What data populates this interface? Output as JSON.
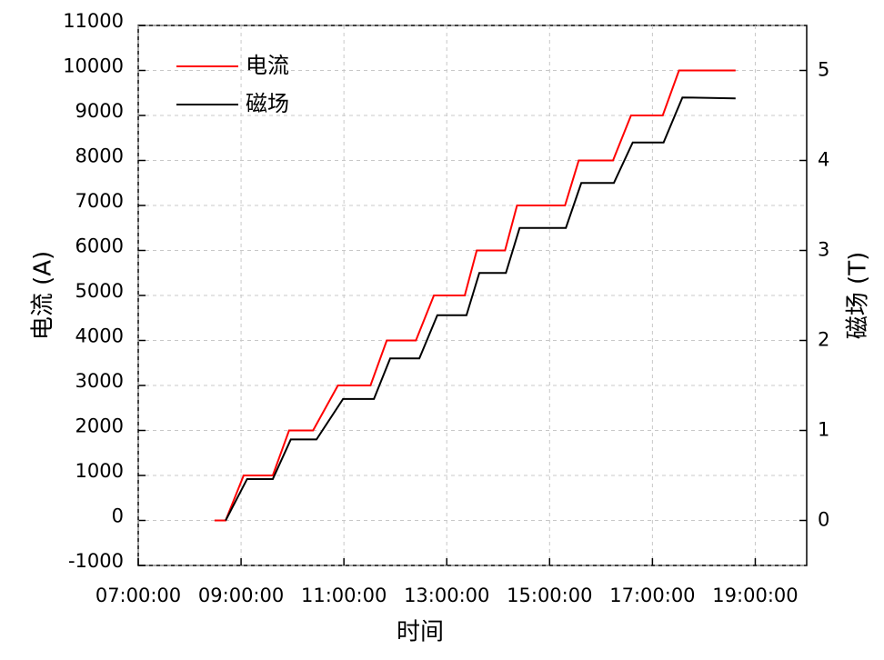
{
  "chart_data": {
    "type": "line",
    "xlabel": "时间",
    "ylabel": "电流 (A)",
    "y2label": "磁场 (T)",
    "xlim": [
      "07:00:00",
      "20:00:00"
    ],
    "xticks": [
      "07:00:00",
      "09:00:00",
      "11:00:00",
      "13:00:00",
      "15:00:00",
      "17:00:00",
      "19:00:00"
    ],
    "ylim": [
      -1000,
      11000
    ],
    "yticks": [
      -1000,
      0,
      1000,
      2000,
      3000,
      4000,
      5000,
      6000,
      7000,
      8000,
      9000,
      10000,
      11000
    ],
    "y2lim": [
      -0.5,
      5.5
    ],
    "y2ticks": [
      0,
      1,
      2,
      3,
      4,
      5
    ],
    "grid": true,
    "legend": "upper left",
    "series": [
      {
        "name": "电流",
        "color": "#ff0000",
        "axis": "y",
        "x": [
          "08:29",
          "08:42",
          "09:03",
          "09:37",
          "09:56",
          "10:24",
          "10:53",
          "11:31",
          "11:50",
          "12:24",
          "12:45",
          "13:21",
          "13:35",
          "14:08",
          "14:22",
          "15:18",
          "15:34",
          "16:14",
          "16:35",
          "17:12",
          "17:31",
          "18:37"
        ],
        "values": [
          0,
          0,
          1000,
          1000,
          2000,
          2000,
          3000,
          3000,
          4000,
          4000,
          5000,
          5000,
          6000,
          6000,
          7000,
          7000,
          8000,
          8000,
          9000,
          9000,
          10000,
          10000
        ]
      },
      {
        "name": "磁场",
        "color": "#000000",
        "axis": "y2",
        "x": [
          "08:42",
          "09:07",
          "09:37",
          "09:58",
          "10:28",
          "10:59",
          "11:35",
          "11:54",
          "12:28",
          "12:49",
          "13:23",
          "13:38",
          "14:09",
          "14:25",
          "15:19",
          "15:37",
          "16:15",
          "16:37",
          "17:13",
          "17:35",
          "18:37"
        ],
        "values": [
          0,
          0.46,
          0.46,
          0.9,
          0.9,
          1.35,
          1.35,
          1.8,
          1.8,
          2.28,
          2.28,
          2.75,
          2.75,
          3.25,
          3.25,
          3.75,
          3.75,
          4.2,
          4.2,
          4.7,
          4.69
        ]
      }
    ]
  }
}
